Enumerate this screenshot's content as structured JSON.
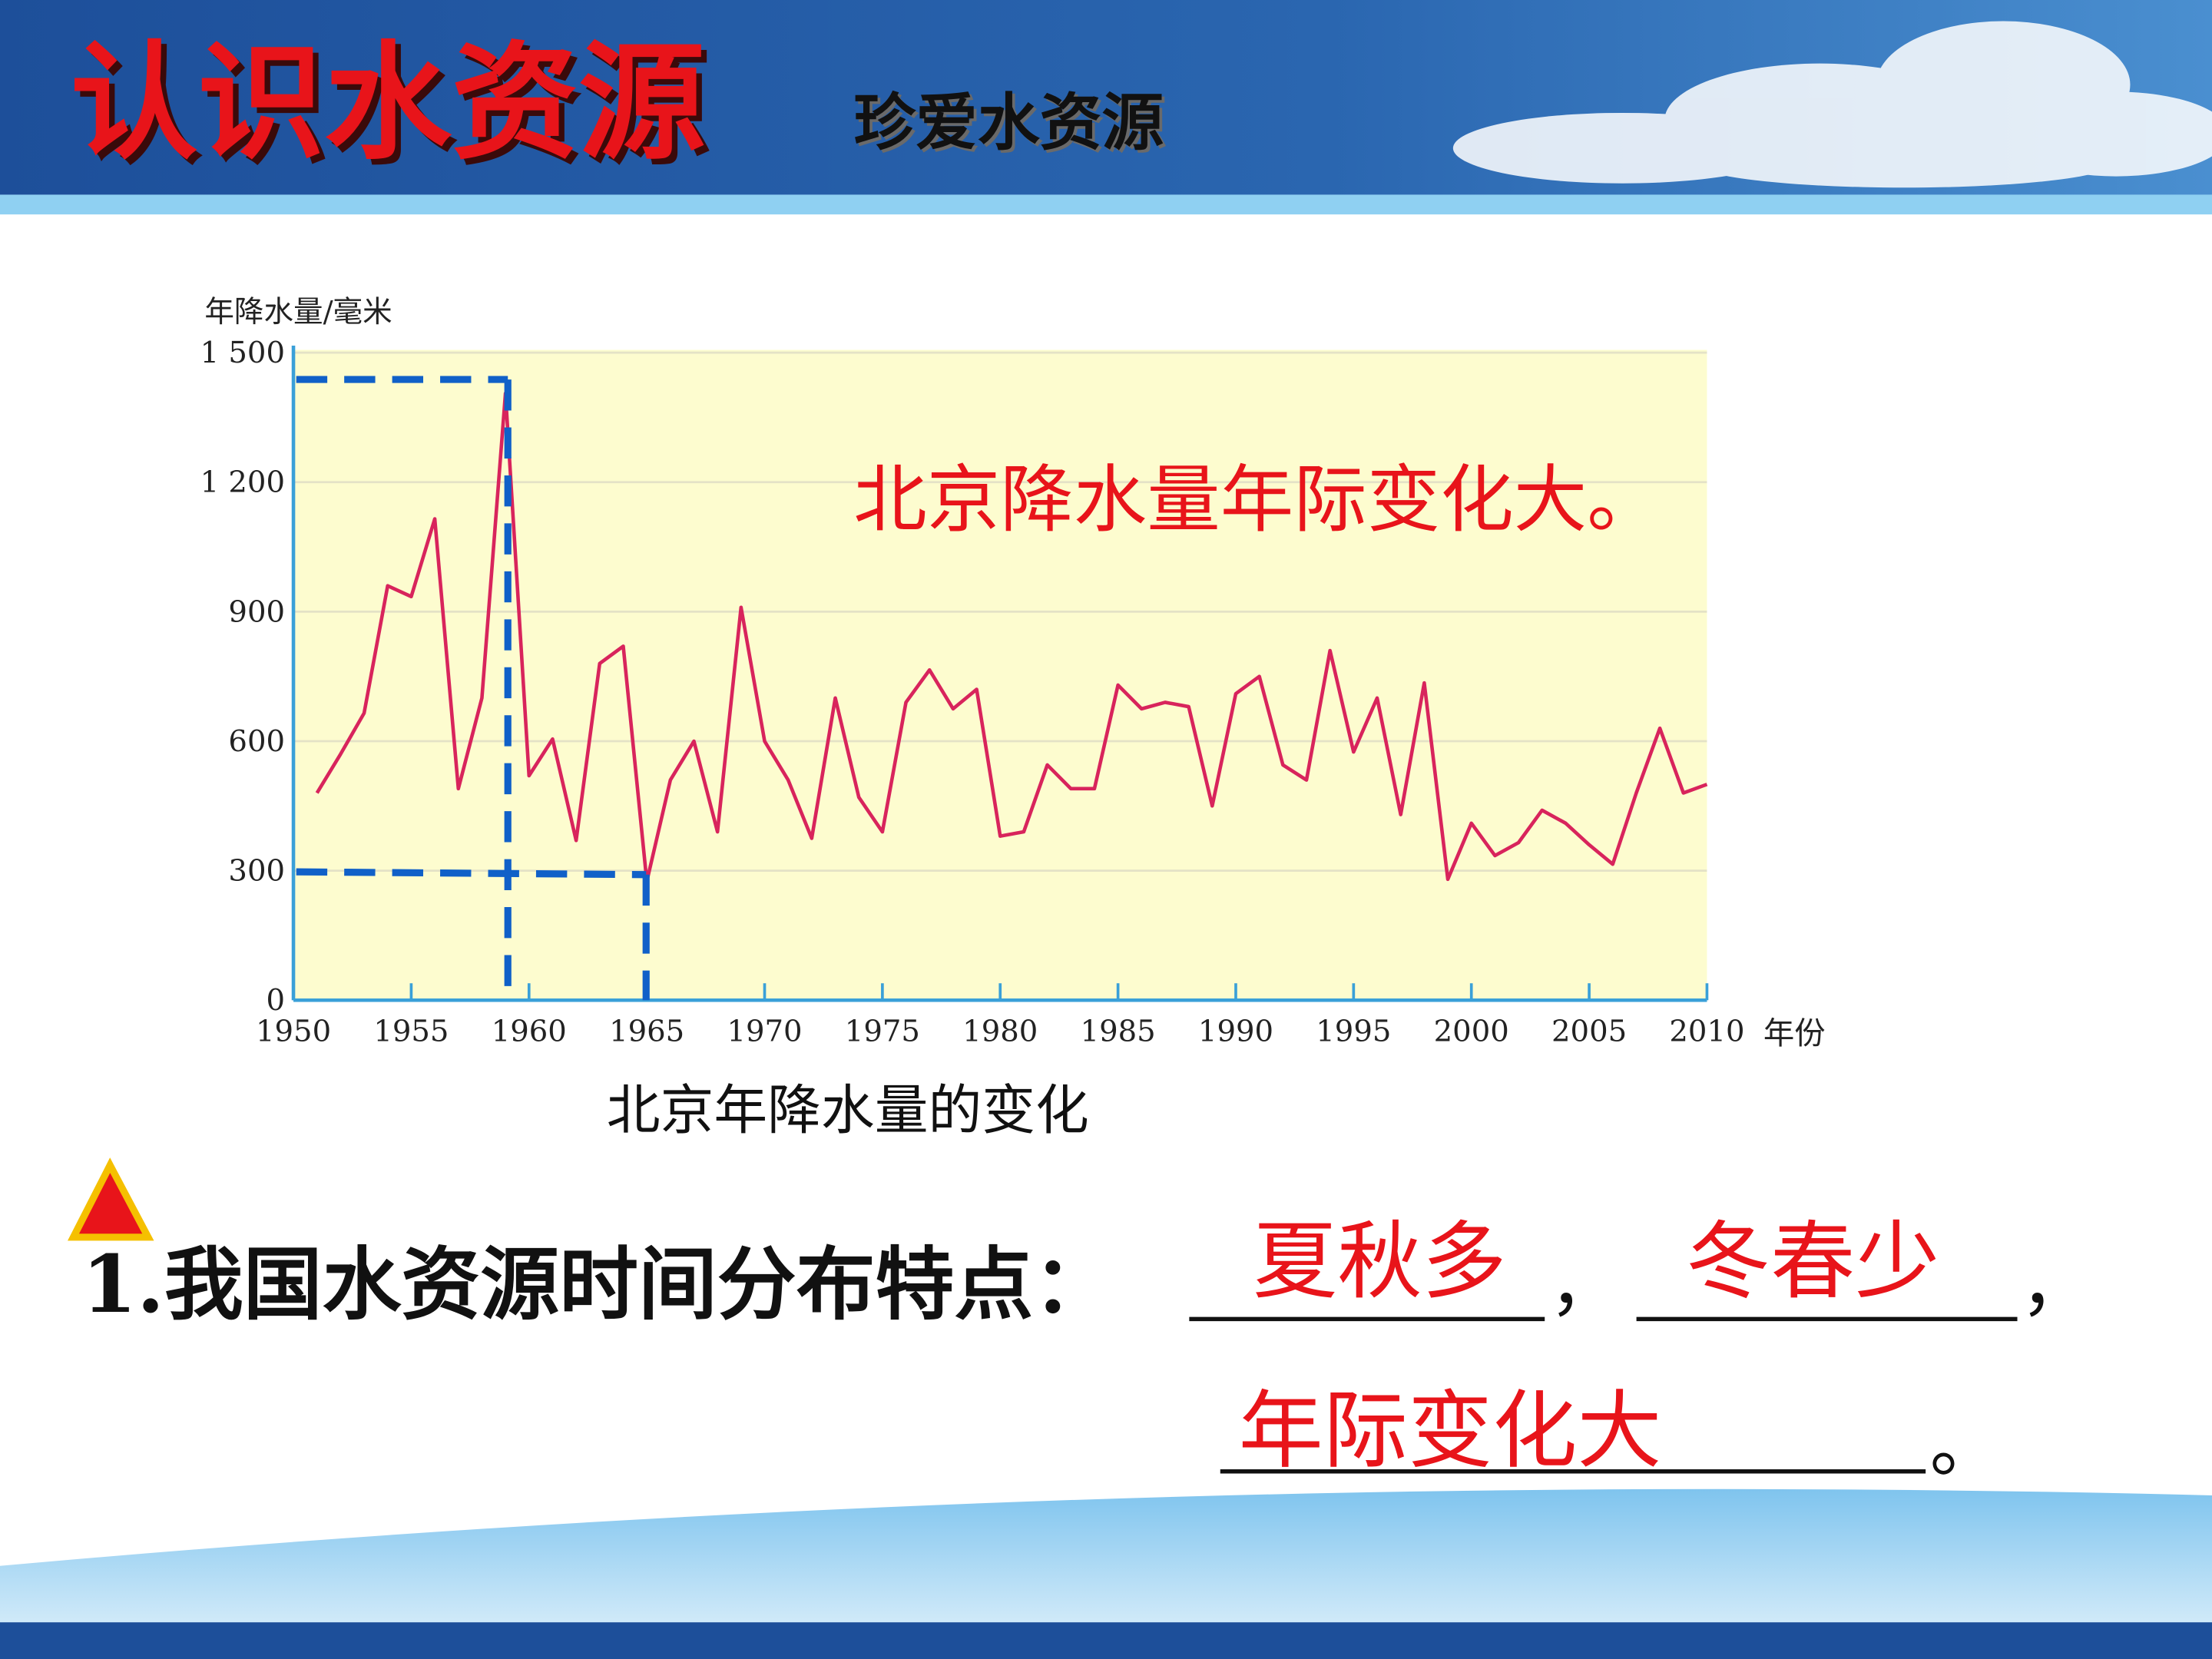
{
  "header": {
    "title": "认识水资源",
    "subtitle": "珍爱水资源"
  },
  "chart_data": {
    "type": "line",
    "ylabel": "年降水量/毫米",
    "xlabel": "年份",
    "annotation": "北京降水量年际变化大。",
    "caption": "北京年降水量的变化",
    "x": [
      1951,
      1952,
      1953,
      1954,
      1955,
      1956,
      1957,
      1958,
      1959,
      1960,
      1961,
      1962,
      1963,
      1964,
      1965,
      1966,
      1967,
      1968,
      1969,
      1970,
      1971,
      1972,
      1973,
      1974,
      1975,
      1976,
      1977,
      1978,
      1979,
      1980,
      1981,
      1982,
      1983,
      1984,
      1985,
      1986,
      1987,
      1988,
      1989,
      1990,
      1991,
      1992,
      1993,
      1994,
      1995,
      1996,
      1997,
      1998,
      1999,
      2000,
      2001,
      2002,
      2003,
      2004,
      2005,
      2006,
      2007,
      2008,
      2009,
      2010
    ],
    "values": [
      480,
      570,
      665,
      960,
      935,
      1115,
      490,
      700,
      1406,
      520,
      605,
      370,
      780,
      820,
      275,
      510,
      600,
      390,
      910,
      600,
      510,
      375,
      700,
      470,
      390,
      690,
      765,
      675,
      720,
      380,
      390,
      545,
      490,
      490,
      730,
      675,
      690,
      680,
      450,
      710,
      750,
      545,
      510,
      810,
      575,
      700,
      430,
      735,
      280,
      410,
      335,
      365,
      440,
      410,
      360,
      315,
      480,
      630,
      480,
      500
    ],
    "color": "#d8245c",
    "xlim": [
      1950,
      2010
    ],
    "ylim": [
      0,
      1500
    ],
    "xticks": [
      1950,
      1955,
      1960,
      1965,
      1970,
      1975,
      1980,
      1985,
      1990,
      1995,
      2000,
      2005,
      2010
    ],
    "yticks": [
      0,
      300,
      600,
      900,
      {
        "value": 1200,
        "label": "1 200"
      },
      {
        "value": 1500,
        "label": "1 500"
      }
    ],
    "grid": true
  },
  "question": {
    "text": "1.我国水资源时间分布特点：",
    "answers": [
      "夏秋多",
      "冬春少",
      "年际变化大"
    ],
    "separators": [
      "，",
      "，",
      "。"
    ]
  }
}
